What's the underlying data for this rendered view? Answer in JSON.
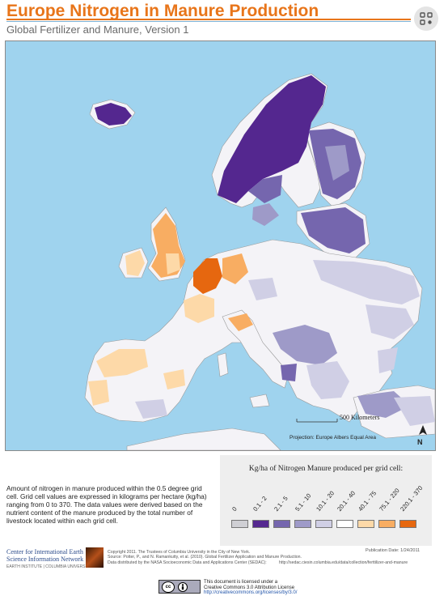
{
  "header": {
    "title": "Europe Nitrogen in Manure Production",
    "subtitle": "Global Fertilizer and Manure, Version 1"
  },
  "icons": {
    "search": "search-icon",
    "north_arrow": "north-arrow-icon",
    "cc": "creative-commons-icon"
  },
  "map": {
    "scale_label": "500 Kilometers",
    "projection": "Projection: Europe Albers Equal Area",
    "north": "N",
    "colors": {
      "sea": "#9fd3ee",
      "nodata": "#ffffff",
      "borders": "#8a8a8a"
    }
  },
  "description": "Amount of nitrogen in manure produced within the 0.5 degree grid cell.  Grid cell values are expressed in kilograms per hectare (kg/ha) ranging from 0 to 370. The data values were derived based on the nutrient content of the manure produced by the total number of livestock located within each grid cell.",
  "legend": {
    "title": "Kg/ha of Nitrogen Manure produced per grid cell:",
    "classes": [
      {
        "label": "0",
        "color": "#cfcfd4"
      },
      {
        "label": "0.1 - 2",
        "color": "#54278f"
      },
      {
        "label": "2.1 - 5",
        "color": "#7566ae"
      },
      {
        "label": "5.1 - 10",
        "color": "#9e9ac8"
      },
      {
        "label": "10.1 - 20",
        "color": "#d0cfe5"
      },
      {
        "label": "20.1 - 40",
        "color": "#ffffff"
      },
      {
        "label": "40.1 - 75",
        "color": "#fdd9a8"
      },
      {
        "label": "75.1 - 220",
        "color": "#f8ad62"
      },
      {
        "label": "220.1 - 370",
        "color": "#e6670f"
      }
    ]
  },
  "footer": {
    "org_line1": "Center for International Earth",
    "org_line2": "Science Information Network",
    "org_sub": "EARTH INSTITUTE | COLUMBIA UNIVERSITY",
    "copyright": "Copyright 2011. The Trustees of Columbia University in the City of New York.",
    "source": "Source: Potter, P., and N. Ramankutty, et al. (2010). Global Fertilizer Application and Manure Production.",
    "distributed": "Data distributed by the NASA Socioeconomic Data and Applications Center (SEDAC):",
    "url": "http://sedac.ciesin.columbia.edu/data/collection/ferttilizer-and-manure",
    "pub_date": "Publication Date: 1/24/2011",
    "cc_label": "cc",
    "license_line1": "This document is licensed under a",
    "license_line2": "Creative Commons 3.0 Attribution License",
    "license_url": "http://creativecommons.org/licenses/by/3.0/"
  }
}
